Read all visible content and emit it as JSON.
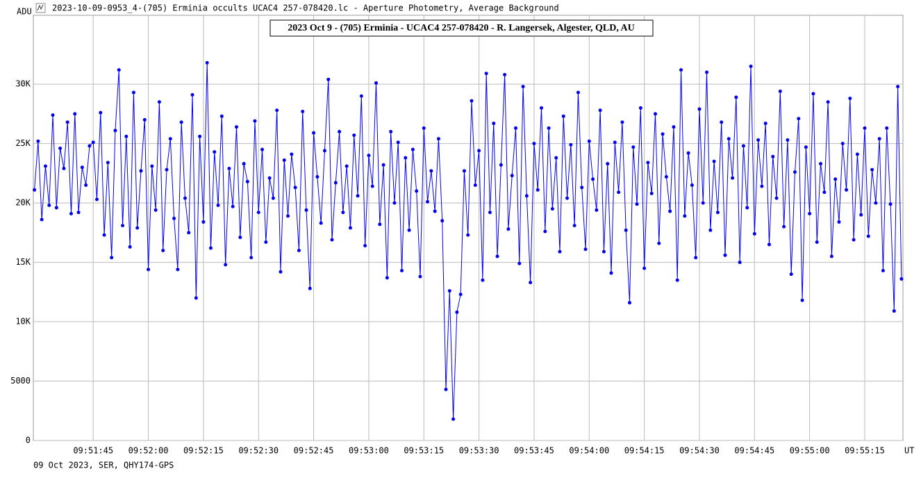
{
  "window_title": "2023-10-09-0953_4-(705) Erminia occults UCAC4 257-078420.lc - Aperture Photometry, Average Background",
  "footer": "09 Oct 2023, SER, QHY174-GPS",
  "chart_data": {
    "type": "line",
    "title": "2023 Oct 9 - (705) Erminia - UCAC4 257-078420 - R. Langersek, Algester, QLD, AU",
    "y_label": "ADU",
    "x_label": "UT",
    "grid": true,
    "xlim": [
      35488.7,
      35725.4
    ],
    "ylim": [
      0,
      35800
    ],
    "xticks": [
      {
        "value": 35505,
        "label": "09:51:45"
      },
      {
        "value": 35520,
        "label": "09:52:00"
      },
      {
        "value": 35535,
        "label": "09:52:15"
      },
      {
        "value": 35550,
        "label": "09:52:30"
      },
      {
        "value": 35565,
        "label": "09:52:45"
      },
      {
        "value": 35580,
        "label": "09:53:00"
      },
      {
        "value": 35595,
        "label": "09:53:15"
      },
      {
        "value": 35610,
        "label": "09:53:30"
      },
      {
        "value": 35625,
        "label": "09:53:45"
      },
      {
        "value": 35640,
        "label": "09:54:00"
      },
      {
        "value": 35655,
        "label": "09:54:15"
      },
      {
        "value": 35670,
        "label": "09:54:30"
      },
      {
        "value": 35685,
        "label": "09:54:45"
      },
      {
        "value": 35700,
        "label": "09:55:00"
      },
      {
        "value": 35715,
        "label": "09:55:15"
      }
    ],
    "yticks": [
      0,
      5000,
      {
        "value": 10000,
        "label": "10K"
      },
      {
        "value": 15000,
        "label": "15K"
      },
      {
        "value": 20000,
        "label": "20K"
      },
      {
        "value": 25000,
        "label": "25K"
      },
      {
        "value": 30000,
        "label": "30K"
      }
    ],
    "series": [
      {
        "name": "Aperture Photometry",
        "color": "#0000ee",
        "x": [
          35489,
          35490,
          35491,
          35492,
          35493,
          35494,
          35495,
          35496,
          35497,
          35498,
          35499,
          35500,
          35501,
          35502,
          35503,
          35504,
          35505,
          35506,
          35507,
          35508,
          35509,
          35510,
          35511,
          35512,
          35513,
          35514,
          35515,
          35516,
          35517,
          35518,
          35519,
          35520,
          35521,
          35522,
          35523,
          35524,
          35525,
          35526,
          35527,
          35528,
          35529,
          35530,
          35531,
          35532,
          35533,
          35534,
          35535,
          35536,
          35537,
          35538,
          35539,
          35540,
          35541,
          35542,
          35543,
          35544,
          35545,
          35546,
          35547,
          35548,
          35549,
          35550,
          35551,
          35552,
          35553,
          35554,
          35555,
          35556,
          35557,
          35558,
          35559,
          35560,
          35561,
          35562,
          35563,
          35564,
          35565,
          35566,
          35567,
          35568,
          35569,
          35570,
          35571,
          35572,
          35573,
          35574,
          35575,
          35576,
          35577,
          35578,
          35579,
          35580,
          35581,
          35582,
          35583,
          35584,
          35585,
          35586,
          35587,
          35588,
          35589,
          35590,
          35591,
          35592,
          35593,
          35594,
          35595,
          35596,
          35597,
          35598,
          35599,
          35600,
          35601,
          35602,
          35603,
          35604,
          35605,
          35606,
          35607,
          35608,
          35609,
          35610,
          35611,
          35612,
          35613,
          35614,
          35615,
          35616,
          35617,
          35618,
          35619,
          35620,
          35621,
          35622,
          35623,
          35624,
          35625,
          35626,
          35627,
          35628,
          35629,
          35630,
          35631,
          35632,
          35633,
          35634,
          35635,
          35636,
          35637,
          35638,
          35639,
          35640,
          35641,
          35642,
          35643,
          35644,
          35645,
          35646,
          35647,
          35648,
          35649,
          35650,
          35651,
          35652,
          35653,
          35654,
          35655,
          35656,
          35657,
          35658,
          35659,
          35660,
          35661,
          35662,
          35663,
          35664,
          35665,
          35666,
          35667,
          35668,
          35669,
          35670,
          35671,
          35672,
          35673,
          35674,
          35675,
          35676,
          35677,
          35678,
          35679,
          35680,
          35681,
          35682,
          35683,
          35684,
          35685,
          35686,
          35687,
          35688,
          35689,
          35690,
          35691,
          35692,
          35693,
          35694,
          35695,
          35696,
          35697,
          35698,
          35699,
          35700,
          35701,
          35702,
          35703,
          35704,
          35705,
          35706,
          35707,
          35708,
          35709,
          35710,
          35711,
          35712,
          35713,
          35714,
          35715,
          35716,
          35717,
          35718,
          35719,
          35720,
          35721,
          35722,
          35723,
          35724,
          35725
        ],
        "values": [
          21100,
          25200,
          18600,
          23100,
          19800,
          27400,
          19600,
          24600,
          22900,
          26800,
          19100,
          27500,
          19200,
          23000,
          21500,
          24800,
          25100,
          20300,
          27600,
          17300,
          23400,
          15400,
          26100,
          31200,
          18100,
          25600,
          16300,
          29300,
          17900,
          22700,
          27000,
          14400,
          23100,
          19400,
          28500,
          16000,
          22800,
          25400,
          18700,
          14400,
          26800,
          20400,
          17500,
          29100,
          12000,
          25600,
          18400,
          31800,
          16200,
          24300,
          19800,
          27300,
          14800,
          22900,
          19700,
          26400,
          17100,
          23300,
          21800,
          15400,
          26900,
          19200,
          24500,
          16700,
          22100,
          20400,
          27800,
          14200,
          23600,
          18900,
          24100,
          21300,
          16000,
          27700,
          19400,
          12800,
          25900,
          22200,
          18300,
          24400,
          30400,
          16900,
          21700,
          26000,
          19200,
          23100,
          17900,
          25700,
          20600,
          29000,
          16400,
          24000,
          21400,
          30100,
          18200,
          23200,
          13700,
          26000,
          20000,
          25100,
          14300,
          23800,
          17700,
          24500,
          21000,
          13800,
          26300,
          20100,
          22700,
          19300,
          25400,
          18500,
          4300,
          12600,
          1800,
          10800,
          12300,
          22700,
          17300,
          28600,
          21500,
          24400,
          13500,
          30900,
          19200,
          26700,
          15500,
          23200,
          30800,
          17800,
          22300,
          26300,
          14900,
          29800,
          20600,
          13300,
          25000,
          21100,
          28000,
          17600,
          26300,
          19500,
          23800,
          15900,
          27300,
          20400,
          24900,
          18100,
          29300,
          21300,
          16100,
          25200,
          22000,
          19400,
          27800,
          15900,
          23300,
          14100,
          25100,
          20900,
          26800,
          17700,
          11600,
          24700,
          19900,
          28000,
          14500,
          23400,
          20800,
          27500,
          16600,
          25800,
          22200,
          19300,
          26400,
          13500,
          31200,
          18900,
          24200,
          21500,
          15400,
          27900,
          20000,
          31000,
          17700,
          23500,
          19200,
          26800,
          15600,
          25400,
          22100,
          28900,
          15000,
          24800,
          19600,
          31500,
          17400,
          25300,
          21400,
          26700,
          16500,
          23900,
          20400,
          29400,
          18000,
          25300,
          14000,
          22600,
          27100,
          11800,
          24700,
          19100,
          29200,
          16700,
          23300,
          20900,
          28500,
          15500,
          22000,
          18400,
          25000,
          21100,
          28800,
          16900,
          24100,
          19000,
          26300,
          17200,
          22800,
          20000,
          25400,
          14300,
          26300,
          19900,
          10900,
          29800,
          13600
        ]
      }
    ]
  }
}
